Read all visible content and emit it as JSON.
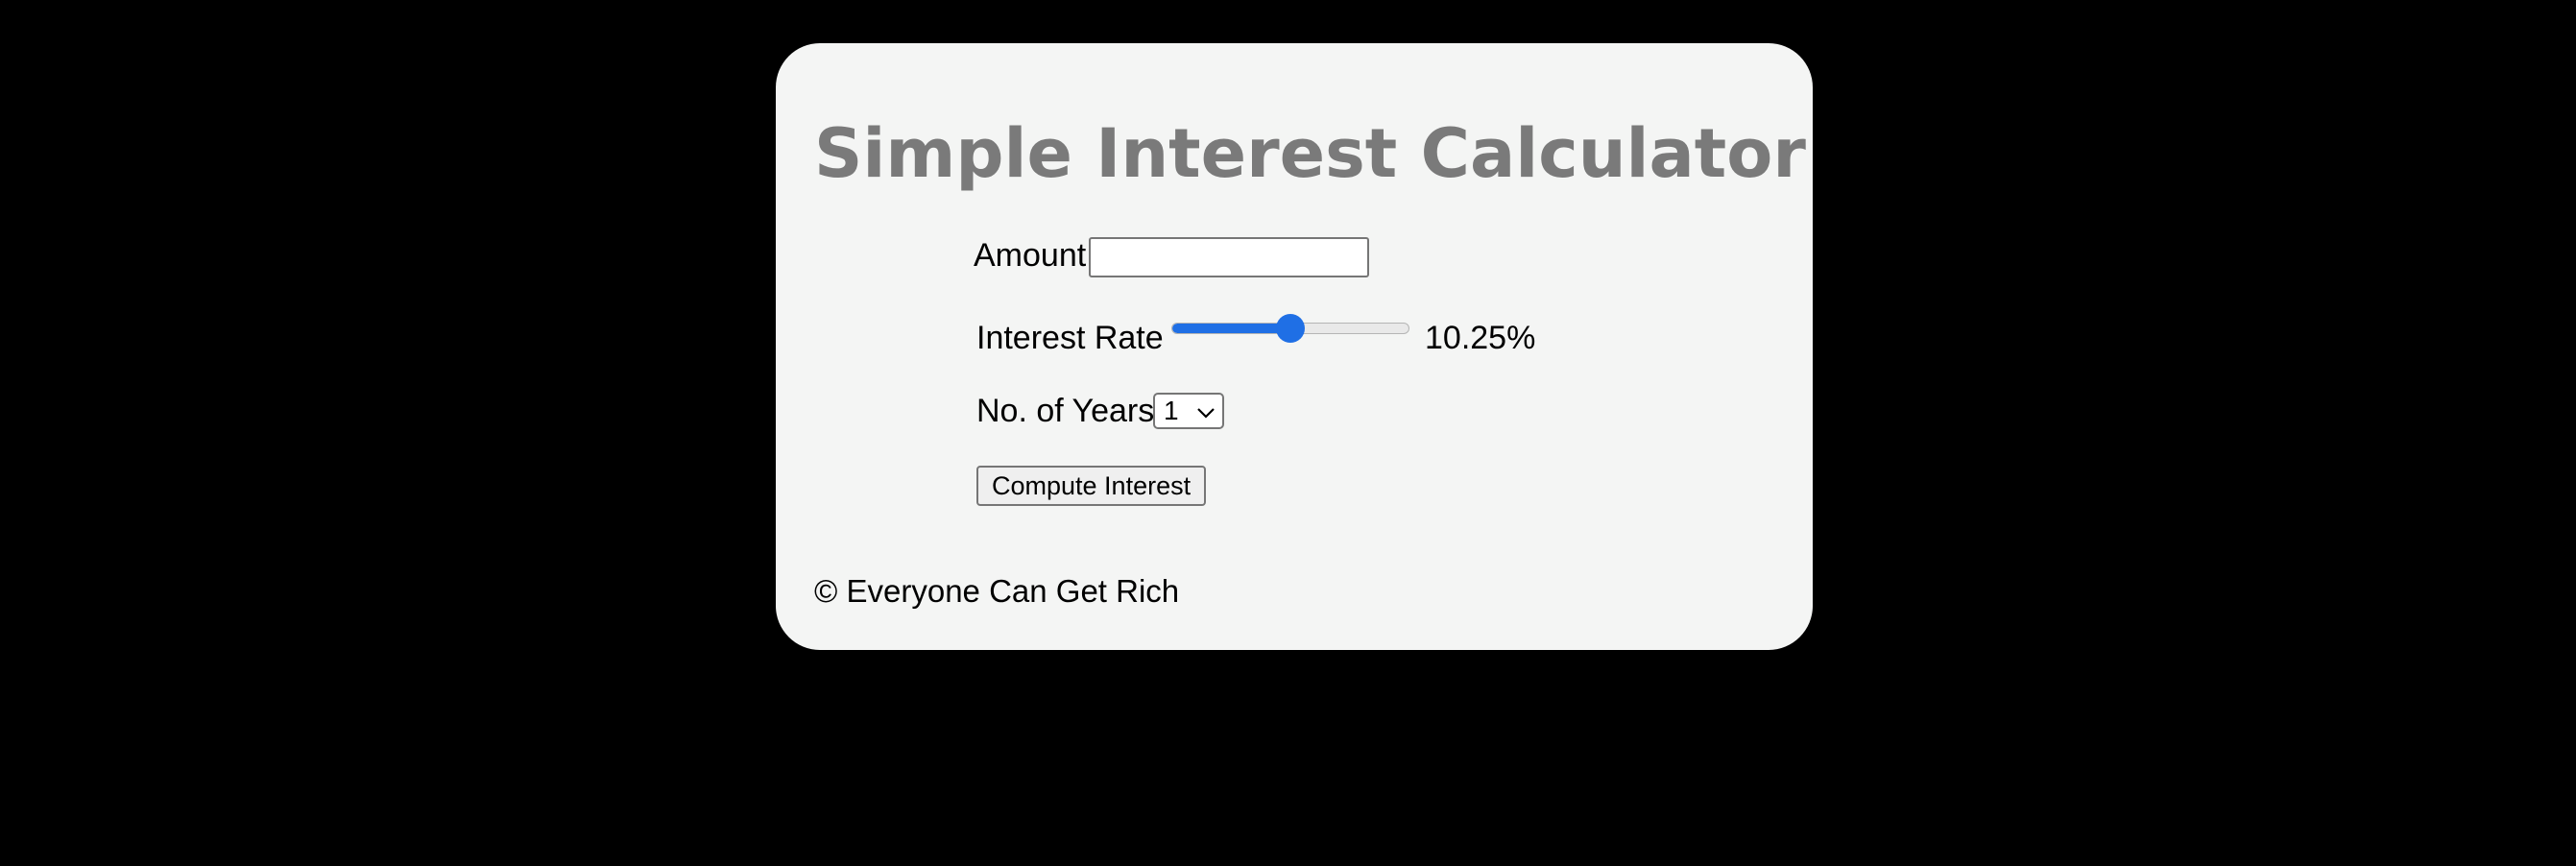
{
  "app": {
    "title": "Simple Interest Calculator"
  },
  "form": {
    "amount_label": "Amount",
    "amount_value": "",
    "rate_label": "Interest Rate",
    "rate_slider_fraction": 0.5,
    "rate_display": "10.25%",
    "years_label": "No. of Years",
    "years_selected": "1",
    "compute_label": "Compute Interest"
  },
  "footer": {
    "text": "© Everyone Can Get Rich"
  },
  "colors": {
    "page_background": "#000000",
    "card_background": "#f4f5f4",
    "title_color": "#7a7a7a",
    "slider_accent": "#1f6fe5"
  },
  "icons": {
    "select_arrow": "chevron-down-icon"
  }
}
